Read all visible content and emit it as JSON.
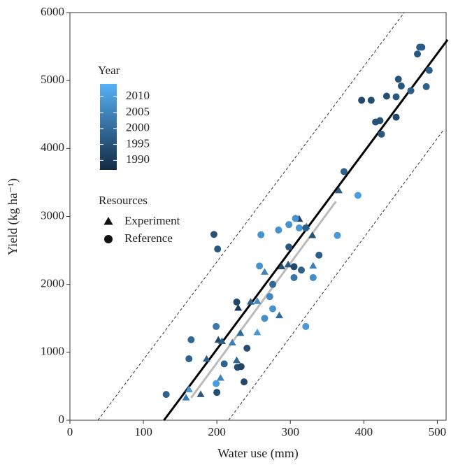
{
  "chart_data": {
    "type": "scatter",
    "x_label": "Water use (mm)",
    "y_label": "Yield (kg ha⁻¹)",
    "xlim": [
      0,
      512
    ],
    "ylim": [
      0,
      6000
    ],
    "xticks": [
      0,
      100,
      200,
      300,
      400,
      500
    ],
    "yticks": [
      0,
      1000,
      2000,
      3000,
      4000,
      5000,
      6000
    ],
    "color_title": "Year",
    "color_lim": [
      1987,
      2014
    ],
    "color_ticks": [
      1990,
      1995,
      2000,
      2005,
      2010
    ],
    "low_color": "#132B43",
    "high_color": "#56B1F7",
    "legend_title": "Resources",
    "series": [
      {
        "name": "Experiment",
        "marker": "triangle",
        "x": [
          158,
          162,
          178,
          186,
          202,
          207,
          205,
          221,
          227,
          229,
          232,
          246,
          255,
          255,
          265,
          285,
          288,
          297,
          312,
          322,
          330,
          331,
          366
        ],
        "values": [
          330,
          450,
          380,
          900,
          1180,
          1160,
          620,
          1140,
          880,
          1650,
          1280,
          1740,
          1750,
          1290,
          2180,
          1540,
          2260,
          2290,
          2960,
          2850,
          2720,
          2270,
          3380
        ],
        "years": [
          2003,
          2009,
          1996,
          1997,
          1993,
          1997,
          2005,
          2004,
          1999,
          1990,
          1999,
          1998,
          2006,
          2009,
          2005,
          2000,
          1994,
          1996,
          1991,
          2007,
          1995,
          2004,
          1997
        ]
      },
      {
        "name": "Reference",
        "marker": "circle",
        "x": [
          131,
          165,
          162,
          196,
          201,
          199,
          200,
          199,
          210,
          227,
          228,
          233,
          237,
          241,
          260,
          258,
          265,
          272,
          276,
          276,
          284,
          298,
          298,
          305,
          307,
          312,
          315,
          321,
          331,
          339,
          321,
          392,
          364,
          373,
          397,
          410,
          416,
          422,
          424,
          431,
          444,
          447,
          444,
          451,
          464,
          473,
          476,
          479,
          485,
          489,
          305
        ],
        "values": [
          380,
          1185,
          905,
          2735,
          2520,
          1380,
          410,
          540,
          830,
          1740,
          780,
          790,
          565,
          1060,
          2730,
          2270,
          1500,
          1820,
          2000,
          1640,
          2800,
          2550,
          2880,
          2100,
          2970,
          2830,
          2210,
          2830,
          2100,
          2430,
          1380,
          3310,
          2720,
          3660,
          4710,
          4710,
          4390,
          4410,
          4210,
          4770,
          4760,
          5020,
          4460,
          4920,
          4850,
          5390,
          5490,
          5490,
          4910,
          5150,
          2260
        ],
        "years": [
          1998,
          1999,
          1998,
          1995,
          1996,
          2003,
          1994,
          2010,
          1998,
          1993,
          1994,
          1992,
          1993,
          1994,
          2008,
          2008,
          2007,
          2006,
          1999,
          2008,
          2008,
          1996,
          2008,
          2002,
          2008,
          2009,
          1998,
          1997,
          2007,
          1997,
          2009,
          2010,
          2009,
          1998,
          1993,
          1994,
          1995,
          1995,
          1996,
          1994,
          1996,
          1995,
          1993,
          1996,
          1997,
          1996,
          1997,
          1997,
          1998,
          1997,
          1993
        ]
      }
    ],
    "lines": [
      {
        "x": [
          128,
          514
        ],
        "values": [
          0,
          5600
        ],
        "color": "#000000",
        "dash": false
      },
      {
        "x": [
          38,
          455
        ],
        "values": [
          0,
          6000
        ],
        "color": "#333333",
        "dash": true
      },
      {
        "x": [
          216,
          509
        ],
        "values": [
          0,
          4280
        ],
        "color": "#333333",
        "dash": true
      },
      {
        "x": [
          165,
          362
        ],
        "values": [
          330,
          3220
        ],
        "color": "#bbbbbb",
        "dash": false
      }
    ]
  }
}
